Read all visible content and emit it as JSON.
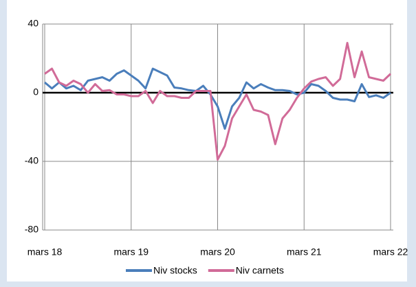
{
  "chart_data": {
    "type": "line",
    "categories": [
      "mars 18",
      null,
      null,
      null,
      null,
      null,
      null,
      null,
      null,
      null,
      null,
      null,
      "mars 19",
      null,
      null,
      null,
      null,
      null,
      null,
      null,
      null,
      null,
      null,
      null,
      "mars 20",
      null,
      null,
      null,
      null,
      null,
      null,
      null,
      null,
      null,
      null,
      null,
      "mars 21",
      null,
      null,
      null,
      null,
      null,
      null,
      null,
      null,
      null,
      null,
      null,
      "mars 22"
    ],
    "series": [
      {
        "name": "Niv stocks",
        "color": "#4a7ebb",
        "values": [
          6,
          2.5,
          6,
          2.5,
          4,
          1.5,
          7,
          8,
          9,
          7,
          11,
          13,
          10,
          7,
          2.5,
          14,
          12,
          10,
          3,
          2.5,
          1.5,
          1,
          4,
          -1,
          -8,
          -21,
          -8,
          -3,
          6,
          2.5,
          5,
          3,
          1.5,
          1.5,
          1,
          -1,
          0,
          5,
          4,
          1,
          -3,
          -4,
          -4,
          -5,
          5,
          -2.5,
          -1.5,
          -3,
          0
        ]
      },
      {
        "name": "Niv carnets",
        "color": "#d16b98",
        "values": [
          11,
          14,
          6,
          4,
          7,
          5,
          0,
          5,
          1,
          1.5,
          -1,
          -1,
          -2,
          -2,
          1,
          -6,
          1,
          -2,
          -2,
          -3,
          -3,
          1,
          1,
          1,
          -39,
          -31,
          -15,
          -8,
          -1,
          -10,
          -11,
          -13,
          -30,
          -15,
          -10,
          -3,
          2.5,
          6.5,
          8,
          9,
          4,
          8,
          29,
          9,
          24,
          9,
          8,
          7,
          11
        ]
      }
    ],
    "ylim": [
      -80,
      40
    ],
    "yticks": [
      -80,
      -40,
      0,
      40
    ],
    "grid": true
  }
}
